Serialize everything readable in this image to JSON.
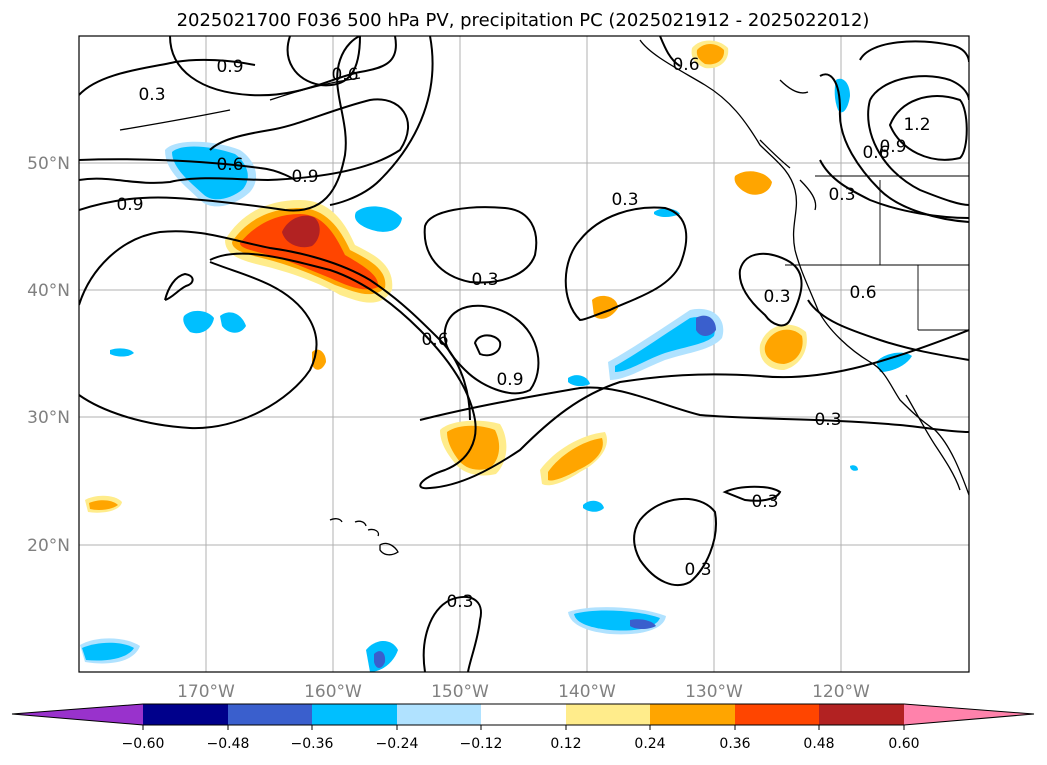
{
  "title": "2025021700 F036 500 hPa PV, precipitation PC (2025021912 - 2025022012)",
  "map": {
    "lon_range": [
      -180,
      -110
    ],
    "lat_range": [
      10,
      60
    ],
    "gridlines": true,
    "lat_labels": [
      "50°N",
      "40°N",
      "30°N",
      "20°N"
    ],
    "lon_labels": [
      "170°W",
      "160°W",
      "150°W",
      "140°W",
      "130°W",
      "120°W"
    ]
  },
  "colorbar": {
    "extend": "both",
    "tick_labels": [
      "−0.60",
      "−0.48",
      "−0.36",
      "−0.24",
      "−0.12",
      "0.12",
      "0.24",
      "0.36",
      "0.48",
      "0.60"
    ],
    "colors": [
      "#9932cc",
      "#00008b",
      "#3a5fcd",
      "#00bfff",
      "#b0e2ff",
      "#ffffff",
      "#ffec8b",
      "#ffa500",
      "#ff4500",
      "#b22222",
      "#ff82ab"
    ]
  },
  "pv_contour_labels": {
    "a": "0.9",
    "b": "0.6",
    "c": "0.3",
    "d": "0.6",
    "e": "0.9",
    "f": "0.9",
    "g": "0.3",
    "h": "0.3",
    "i": "0.6",
    "j": "0.9",
    "k": "0.3",
    "l": "0.3",
    "m": "0.3",
    "n": "0.3",
    "o": "0.3",
    "p": "1.2",
    "q": "0.9",
    "r": "0.6",
    "s": "0.3",
    "t": "0.6",
    "u": "0.6"
  }
}
